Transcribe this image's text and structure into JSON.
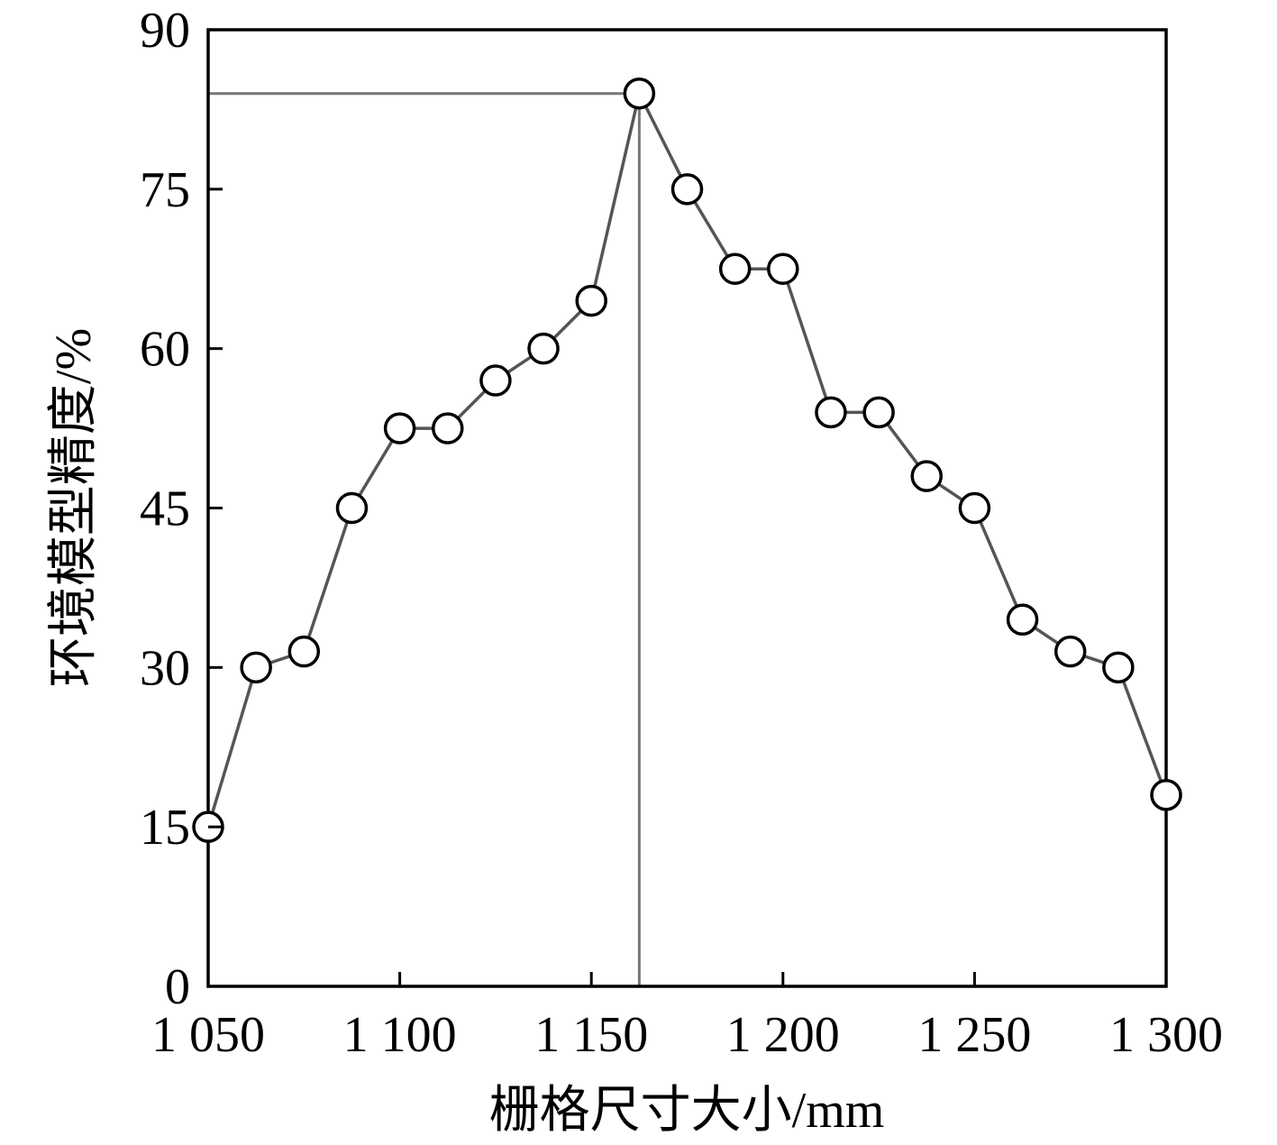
{
  "chart_data": {
    "type": "line",
    "title": "",
    "xlabel": "栅格尺寸大小/mm",
    "ylabel": "环境模型精度/%",
    "xlim": [
      1050,
      1300
    ],
    "ylim": [
      0,
      90
    ],
    "x_ticks": [
      1050,
      1100,
      1150,
      1200,
      1250,
      1300
    ],
    "x_tick_labels": [
      "1 050",
      "1 100",
      "1 150",
      "1 200",
      "1 250",
      "1 300"
    ],
    "y_ticks": [
      0,
      15,
      30,
      45,
      60,
      75,
      90
    ],
    "y_tick_labels": [
      "0",
      "15",
      "30",
      "45",
      "60",
      "75",
      "90"
    ],
    "grid": false,
    "legend": "none",
    "series": [
      {
        "x": [
          1050,
          1062.5,
          1075,
          1087.5,
          1100,
          1112.5,
          1125,
          1137.5,
          1150,
          1162.5,
          1175,
          1187.5,
          1200,
          1212.5,
          1225,
          1237.5,
          1250,
          1262.5,
          1275,
          1287.5,
          1300
        ],
        "y": [
          15,
          30,
          31.5,
          45,
          52.5,
          52.5,
          57,
          60,
          64.5,
          84,
          75,
          67.5,
          67.5,
          54,
          54,
          48,
          45,
          34.5,
          31.5,
          30,
          18
        ]
      }
    ],
    "peak_reference": {
      "x": 1162.5,
      "y": 84
    },
    "colors": {
      "line": "#555555",
      "reference_line": "#777777",
      "marker_fill": "#ffffff",
      "marker_stroke": "#000000",
      "frame": "#000000"
    }
  }
}
